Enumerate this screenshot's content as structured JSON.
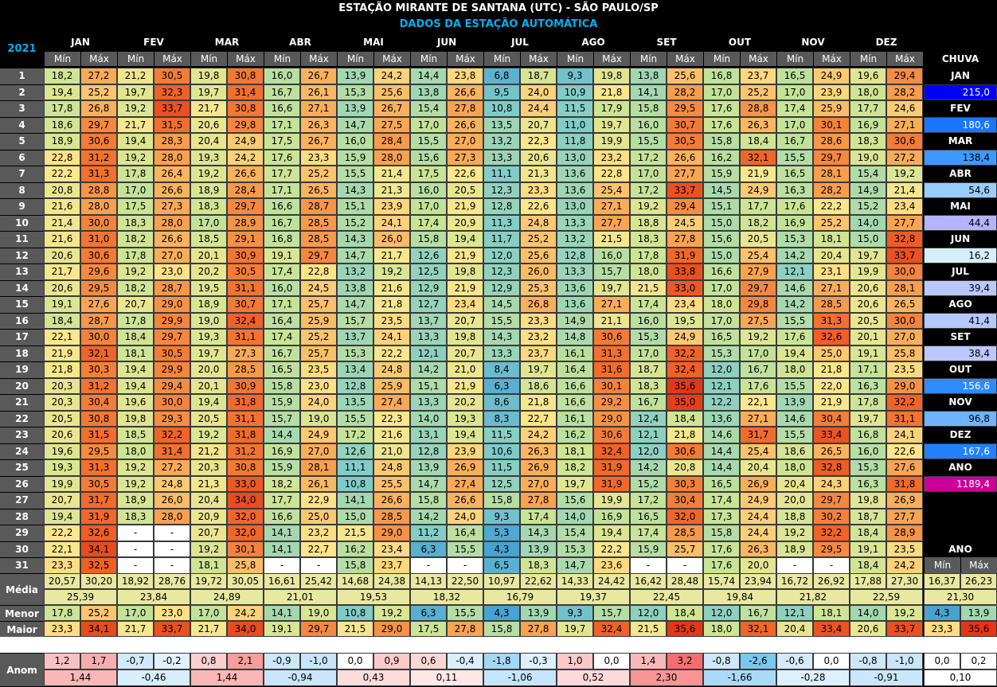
{
  "title": "ESTAÇÃO MIRANTE DE SANTANA (UTC) - SÃO PAULO/SP",
  "subtitle": "DADOS DA ESTAÇÃO AUTOMÁTICA",
  "year": "2021",
  "months": [
    "JAN",
    "FEV",
    "MAR",
    "ABR",
    "MAI",
    "JUN",
    "JUL",
    "AGO",
    "SET",
    "OUT",
    "NOV",
    "DEZ"
  ],
  "col_min": "Mín",
  "col_max": "Máx",
  "chuva_header": "CHUVA",
  "days": [
    "1",
    "2",
    "3",
    "4",
    "5",
    "6",
    "7",
    "8",
    "9",
    "10",
    "11",
    "12",
    "13",
    "14",
    "15",
    "16",
    "17",
    "18",
    "19",
    "20",
    "21",
    "22",
    "23",
    "24",
    "25",
    "26",
    "27",
    "28",
    "29",
    "30",
    "31"
  ],
  "temps": [
    [
      "18,2",
      "27,2",
      "21,2",
      "30,5",
      "19,8",
      "30,8",
      "16,0",
      "26,7",
      "13,9",
      "24,2",
      "14,4",
      "23,8",
      "6,8",
      "18,7",
      "9,3",
      "19,8",
      "13,8",
      "25,6",
      "16,8",
      "23,7",
      "16,5",
      "24,9",
      "19,6",
      "29,4"
    ],
    [
      "19,4",
      "25,2",
      "19,7",
      "32,3",
      "19,7",
      "31,4",
      "16,7",
      "26,1",
      "15,3",
      "25,6",
      "13,8",
      "26,6",
      "9,5",
      "24,0",
      "10,9",
      "21,8",
      "14,1",
      "28,2",
      "17,0",
      "25,2",
      "17,0",
      "23,9",
      "18,0",
      "28,2"
    ],
    [
      "17,8",
      "26,8",
      "19,2",
      "33,7",
      "21,7",
      "30,8",
      "16,6",
      "27,1",
      "13,9",
      "26,7",
      "15,4",
      "27,8",
      "10,8",
      "24,4",
      "11,5",
      "17,9",
      "15,8",
      "29,5",
      "17,6",
      "28,8",
      "17,4",
      "25,9",
      "17,7",
      "24,6"
    ],
    [
      "18,6",
      "29,7",
      "21,7",
      "31,5",
      "20,6",
      "29,8",
      "17,1",
      "26,3",
      "14,7",
      "27,5",
      "17,0",
      "26,6",
      "13,5",
      "20,7",
      "11,0",
      "19,7",
      "16,0",
      "30,7",
      "17,6",
      "26,3",
      "17,0",
      "30,1",
      "16,9",
      "27,1"
    ],
    [
      "18,9",
      "30,6",
      "19,4",
      "28,3",
      "20,4",
      "24,9",
      "17,5",
      "26,7",
      "16,0",
      "28,4",
      "15,5",
      "27,0",
      "13,2",
      "22,3",
      "11,8",
      "19,9",
      "15,5",
      "30,5",
      "15,8",
      "18,4",
      "16,7",
      "28,6",
      "18,3",
      "30,6"
    ],
    [
      "22,8",
      "31,2",
      "19,2",
      "28,0",
      "19,3",
      "24,2",
      "17,6",
      "23,3",
      "15,9",
      "28,0",
      "15,6",
      "27,3",
      "13,3",
      "20,6",
      "13,0",
      "23,2",
      "17,2",
      "26,6",
      "16,2",
      "32,1",
      "15,5",
      "29,7",
      "19,0",
      "27,2"
    ],
    [
      "22,2",
      "31,3",
      "17,8",
      "26,4",
      "19,2",
      "26,6",
      "17,7",
      "25,2",
      "15,5",
      "21,4",
      "17,5",
      "22,6",
      "11,1",
      "21,3",
      "13,6",
      "22,8",
      "17,0",
      "27,7",
      "15,9",
      "21,9",
      "16,5",
      "28,1",
      "15,4",
      "19,2"
    ],
    [
      "20,8",
      "28,8",
      "17,0",
      "26,6",
      "18,9",
      "28,4",
      "17,1",
      "26,5",
      "14,3",
      "21,3",
      "16,0",
      "20,5",
      "12,3",
      "23,3",
      "13,6",
      "25,4",
      "17,2",
      "33,7",
      "14,5",
      "24,9",
      "16,3",
      "28,2",
      "14,9",
      "21,4"
    ],
    [
      "21,6",
      "28,0",
      "17,5",
      "27,3",
      "18,3",
      "29,7",
      "16,6",
      "28,7",
      "15,1",
      "23,9",
      "17,0",
      "21,9",
      "12,8",
      "22,6",
      "13,0",
      "27,1",
      "19,2",
      "29,4",
      "15,1",
      "17,7",
      "17,6",
      "22,2",
      "15,2",
      "23,4"
    ],
    [
      "21,4",
      "30,0",
      "18,3",
      "28,0",
      "17,0",
      "28,9",
      "16,7",
      "28,5",
      "15,2",
      "24,1",
      "17,4",
      "20,9",
      "11,3",
      "24,8",
      "13,3",
      "27,7",
      "18,8",
      "24,5",
      "15,0",
      "18,2",
      "16,9",
      "25,2",
      "14,0",
      "27,7"
    ],
    [
      "21,6",
      "31,0",
      "18,2",
      "26,6",
      "18,5",
      "29,1",
      "16,8",
      "28,5",
      "14,3",
      "26,0",
      "15,8",
      "19,4",
      "11,7",
      "25,2",
      "13,2",
      "21,5",
      "18,3",
      "27,8",
      "15,6",
      "20,5",
      "15,3",
      "18,1",
      "15,0",
      "32,8"
    ],
    [
      "20,6",
      "30,6",
      "17,8",
      "27,0",
      "20,1",
      "30,9",
      "19,1",
      "29,7",
      "14,7",
      "21,7",
      "12,6",
      "21,9",
      "12,0",
      "25,6",
      "12,8",
      "16,0",
      "17,8",
      "31,9",
      "15,0",
      "25,4",
      "14,2",
      "20,4",
      "19,7",
      "33,7"
    ],
    [
      "21,7",
      "29,6",
      "19,2",
      "23,0",
      "20,2",
      "30,5",
      "17,4",
      "22,8",
      "13,2",
      "19,2",
      "12,5",
      "19,8",
      "12,3",
      "26,0",
      "13,3",
      "15,7",
      "18,0",
      "33,8",
      "16,6",
      "27,9",
      "12,1",
      "23,1",
      "19,9",
      "30,0"
    ],
    [
      "20,6",
      "29,5",
      "18,2",
      "28,7",
      "19,5",
      "31,1",
      "16,0",
      "24,5",
      "13,8",
      "21,6",
      "12,9",
      "21,9",
      "12,9",
      "25,3",
      "13,6",
      "19,7",
      "21,5",
      "33,0",
      "17,0",
      "29,7",
      "14,6",
      "27,1",
      "20,6",
      "28,1"
    ],
    [
      "19,1",
      "27,6",
      "20,7",
      "29,0",
      "18,9",
      "30,7",
      "17,1",
      "25,7",
      "14,7",
      "21,8",
      "12,7",
      "23,4",
      "14,5",
      "26,8",
      "13,6",
      "27,1",
      "17,4",
      "23,4",
      "18,0",
      "29,8",
      "14,2",
      "28,5",
      "20,6",
      "26,5"
    ],
    [
      "18,4",
      "28,7",
      "17,8",
      "29,9",
      "19,0",
      "32,4",
      "16,4",
      "25,9",
      "15,7",
      "23,5",
      "13,7",
      "20,7",
      "15,5",
      "23,3",
      "14,9",
      "21,1",
      "16,0",
      "19,5",
      "17,0",
      "27,5",
      "15,5",
      "31,3",
      "20,5",
      "30,0"
    ],
    [
      "22,1",
      "30,0",
      "18,4",
      "29,7",
      "19,3",
      "31,1",
      "17,4",
      "25,2",
      "13,7",
      "24,1",
      "13,3",
      "19,8",
      "14,3",
      "23,2",
      "14,8",
      "30,6",
      "15,3",
      "24,9",
      "16,5",
      "19,2",
      "17,6",
      "32,6",
      "20,1",
      "27,0"
    ],
    [
      "21,9",
      "32,1",
      "18,1",
      "30,5",
      "19,7",
      "27,3",
      "16,7",
      "25,7",
      "15,3",
      "22,2",
      "12,1",
      "20,7",
      "13,3",
      "23,7",
      "16,1",
      "31,3",
      "17,0",
      "32,2",
      "15,3",
      "17,0",
      "19,4",
      "25,0",
      "19,1",
      "25,8"
    ],
    [
      "21,8",
      "30,3",
      "19,4",
      "29,9",
      "20,0",
      "28,5",
      "16,5",
      "23,5",
      "13,4",
      "24,8",
      "14,2",
      "21,0",
      "8,4",
      "19,7",
      "16,4",
      "31,6",
      "18,7",
      "32,4",
      "12,0",
      "16,7",
      "18,0",
      "21,8",
      "17,1",
      "23,5"
    ],
    [
      "20,3",
      "31,2",
      "19,4",
      "29,4",
      "20,1",
      "30,9",
      "15,8",
      "23,0",
      "12,8",
      "25,9",
      "15,1",
      "21,9",
      "6,3",
      "18,6",
      "16,6",
      "30,1",
      "18,3",
      "35,6",
      "12,1",
      "17,6",
      "15,5",
      "22,0",
      "16,3",
      "29,0"
    ],
    [
      "20,3",
      "30,4",
      "19,6",
      "30,0",
      "19,4",
      "31,8",
      "15,9",
      "24,0",
      "13,5",
      "27,4",
      "13,3",
      "20,2",
      "8,6",
      "21,8",
      "16,6",
      "29,2",
      "16,7",
      "35,0",
      "12,2",
      "22,1",
      "13,9",
      "21,9",
      "17,8",
      "32,2"
    ],
    [
      "20,5",
      "30,8",
      "19,8",
      "29,3",
      "20,5",
      "31,1",
      "15,7",
      "19,0",
      "15,5",
      "22,3",
      "14,0",
      "19,3",
      "8,3",
      "22,7",
      "16,1",
      "29,0",
      "12,4",
      "18,4",
      "13,6",
      "27,1",
      "14,6",
      "30,4",
      "19,7",
      "31,1"
    ],
    [
      "20,6",
      "31,5",
      "18,5",
      "32,2",
      "19,2",
      "31,8",
      "14,4",
      "24,9",
      "17,2",
      "21,6",
      "13,1",
      "19,4",
      "11,5",
      "24,2",
      "16,2",
      "30,6",
      "12,1",
      "21,8",
      "14,6",
      "31,7",
      "15,5",
      "33,4",
      "16,8",
      "24,1"
    ],
    [
      "19,6",
      "29,5",
      "18,0",
      "31,4",
      "21,2",
      "31,2",
      "16,9",
      "27,0",
      "12,6",
      "21,0",
      "12,8",
      "23,9",
      "10,6",
      "26,3",
      "18,1",
      "32,4",
      "12,0",
      "30,6",
      "14,4",
      "25,4",
      "18,6",
      "26,5",
      "16,0",
      "22,6"
    ],
    [
      "19,3",
      "31,3",
      "19,2",
      "27,2",
      "20,3",
      "30,8",
      "15,9",
      "28,1",
      "11,1",
      "24,8",
      "13,9",
      "26,9",
      "11,5",
      "26,9",
      "18,2",
      "31,9",
      "14,2",
      "20,8",
      "14,4",
      "20,4",
      "18,0",
      "32,8",
      "15,3",
      "27,6"
    ],
    [
      "19,9",
      "30,5",
      "19,2",
      "24,8",
      "21,3",
      "33,0",
      "18,2",
      "26,1",
      "10,8",
      "25,5",
      "14,7",
      "27,4",
      "12,5",
      "27,0",
      "19,7",
      "31,9",
      "15,2",
      "30,3",
      "16,5",
      "26,9",
      "20,4",
      "24,3",
      "16,3",
      "31,8"
    ],
    [
      "20,7",
      "31,7",
      "18,9",
      "26,0",
      "20,4",
      "34,0",
      "17,7",
      "22,9",
      "14,1",
      "26,6",
      "15,8",
      "26,6",
      "15,8",
      "27,8",
      "15,6",
      "19,9",
      "17,2",
      "30,4",
      "17,4",
      "24,9",
      "20,0",
      "29,7",
      "19,8",
      "26,9"
    ],
    [
      "19,4",
      "31,9",
      "18,3",
      "28,0",
      "20,9",
      "32,0",
      "16,6",
      "25,0",
      "15,0",
      "28,5",
      "14,2",
      "24,0",
      "9,3",
      "17,4",
      "14,0",
      "16,9",
      "16,5",
      "32,0",
      "17,3",
      "24,4",
      "18,8",
      "30,2",
      "18,7",
      "27,7"
    ],
    [
      "22,2",
      "32,6",
      "-",
      "-",
      "20,7",
      "32,0",
      "14,1",
      "23,2",
      "21,5",
      "29,0",
      "11,2",
      "16,4",
      "5,3",
      "14,3",
      "15,4",
      "19,4",
      "17,4",
      "28,5",
      "15,8",
      "24,4",
      "19,2",
      "32,2",
      "18,4",
      "28,9"
    ],
    [
      "22,1",
      "34,1",
      "-",
      "-",
      "19,2",
      "30,1",
      "14,1",
      "22,7",
      "16,2",
      "23,4",
      "6,3",
      "15,5",
      "4,3",
      "13,9",
      "15,3",
      "22,2",
      "15,9",
      "25,7",
      "17,6",
      "26,3",
      "18,9",
      "29,5",
      "19,1",
      "23,5"
    ],
    [
      "23,3",
      "32,5",
      "-",
      "-",
      "18,1",
      "25,8",
      "-",
      "-",
      "15,8",
      "23,7",
      "-",
      "-",
      "6,5",
      "18,3",
      "14,7",
      "23,6",
      "-",
      "-",
      "17,6",
      "20,0",
      "-",
      "-",
      "18,4",
      "24,2"
    ]
  ],
  "rain": [
    {
      "label": "JAN",
      "value": "215,0",
      "color": "#0000ff"
    },
    {
      "label": "FEV",
      "value": "180,6",
      "color": "#1a75ff"
    },
    {
      "label": "MAR",
      "value": "138,4",
      "color": "#3d99ff"
    },
    {
      "label": "ABR",
      "value": "54,6",
      "color": "#99ccff"
    },
    {
      "label": "MAI",
      "value": "44,4",
      "color": "#b3b3ff"
    },
    {
      "label": "JUN",
      "value": "16,2",
      "color": "#d4eefc"
    },
    {
      "label": "JUL",
      "value": "39,4",
      "color": "#b8c8ff"
    },
    {
      "label": "AGO",
      "value": "41,4",
      "color": "#b3c8ff"
    },
    {
      "label": "SET",
      "value": "38,4",
      "color": "#bcc6ff"
    },
    {
      "label": "OUT",
      "value": "156,6",
      "color": "#2e8bff"
    },
    {
      "label": "NOV",
      "value": "96,8",
      "color": "#6fb3ff"
    },
    {
      "label": "DEZ",
      "value": "167,6",
      "color": "#2480ff"
    },
    {
      "label": "ANO",
      "value": "1189,4",
      "color": "#cc0099"
    }
  ],
  "ano_label": "ANO",
  "media_label": "Média",
  "menor_label": "Menor",
  "maior_label": "Maior",
  "anom_label": "Anom",
  "media": [
    "20,57",
    "30,20",
    "18,92",
    "28,76",
    "19,72",
    "30,05",
    "16,61",
    "25,42",
    "14,68",
    "24,38",
    "14,13",
    "22,50",
    "10,97",
    "22,62",
    "14,33",
    "24,42",
    "16,42",
    "28,48",
    "15,74",
    "23,94",
    "16,72",
    "26,92",
    "17,88",
    "27,30"
  ],
  "media_mean": [
    "25,39",
    "23,84",
    "24,89",
    "21,01",
    "19,53",
    "18,32",
    "16,79",
    "19,37",
    "22,45",
    "19,84",
    "21,82",
    "22,59"
  ],
  "menor": [
    "17,8",
    "25,2",
    "17,0",
    "23,0",
    "17,0",
    "24,2",
    "14,1",
    "19,0",
    "10,8",
    "19,2",
    "6,3",
    "15,5",
    "4,3",
    "13,9",
    "9,3",
    "15,7",
    "12,0",
    "18,4",
    "12,0",
    "16,7",
    "12,1",
    "18,1",
    "14,0",
    "19,2"
  ],
  "maior": [
    "23,3",
    "34,1",
    "21,7",
    "33,7",
    "21,7",
    "34,0",
    "19,1",
    "29,7",
    "21,5",
    "29,0",
    "17,5",
    "27,8",
    "15,8",
    "27,8",
    "19,7",
    "32,4",
    "21,5",
    "35,6",
    "18,0",
    "32,1",
    "20,4",
    "33,4",
    "20,6",
    "33,7"
  ],
  "anom": [
    "1,2",
    "1,7",
    "-0,7",
    "-0,2",
    "0,8",
    "2,1",
    "-0,9",
    "-1,0",
    "0,0",
    "0,9",
    "0,6",
    "-0,4",
    "-1,8",
    "-0,3",
    "1,0",
    "0,0",
    "1,4",
    "3,2",
    "-0,8",
    "-2,6",
    "-0,6",
    "0,0",
    "-0,8",
    "-1,0"
  ],
  "anom_mean": [
    "1,44",
    "-0,46",
    "1,44",
    "-0,94",
    "0,43",
    "0,11",
    "-1,06",
    "0,52",
    "2,30",
    "-1,66",
    "-0,28",
    "-0,91"
  ],
  "annual": {
    "min_label": "Mín",
    "max_label": "Máx",
    "media_min": "16,37",
    "media_max": "26,23",
    "media_mean": "21,30",
    "menor_min": "4,3",
    "menor_max": "13,9",
    "maior_min": "23,3",
    "maior_max": "35,6",
    "anom_min": "0,0",
    "anom_max": "0,2",
    "anom_mean": "0,10"
  }
}
